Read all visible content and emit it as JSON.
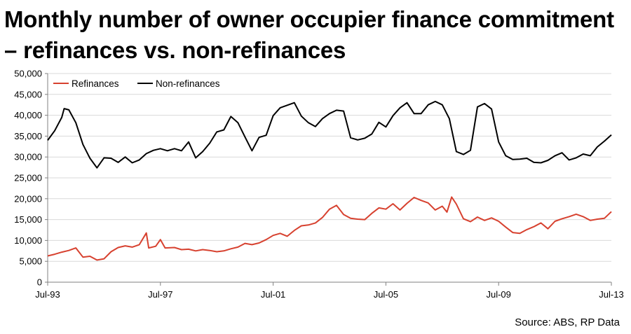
{
  "title": "Monthly number of owner occupier finance commitment – refinances vs. non-refinances",
  "source": "Source: ABS, RP Data",
  "chart_data": {
    "type": "line",
    "title": "Monthly number of owner occupier finance commitment – refinances vs. non-refinances",
    "xlabel": "",
    "ylabel": "",
    "ylim": [
      0,
      50000
    ],
    "yticks": [
      "0",
      "5,000",
      "10,000",
      "15,000",
      "20,000",
      "25,000",
      "30,000",
      "35,000",
      "40,000",
      "45,000",
      "50,000"
    ],
    "xtick_labels": [
      "Jul-93",
      "Jul-97",
      "Jul-01",
      "Jul-05",
      "Jul-09",
      "Jul-13"
    ],
    "xlim": [
      "1993-07",
      "2013-07"
    ],
    "grid": "horizontal",
    "legend": "top-left",
    "colors": {
      "Refinances": "#d7412f",
      "Non-refinances": "#000000"
    },
    "series": [
      {
        "name": "Refinances",
        "points": [
          [
            "1993-07",
            6300
          ],
          [
            "1993-10",
            6700
          ],
          [
            "1994-01",
            7200
          ],
          [
            "1994-04",
            7600
          ],
          [
            "1994-07",
            8200
          ],
          [
            "1994-10",
            6000
          ],
          [
            "1995-01",
            6200
          ],
          [
            "1995-04",
            5300
          ],
          [
            "1995-07",
            5600
          ],
          [
            "1995-10",
            7300
          ],
          [
            "1996-01",
            8300
          ],
          [
            "1996-04",
            8700
          ],
          [
            "1996-07",
            8400
          ],
          [
            "1996-10",
            9000
          ],
          [
            "1997-01",
            11800
          ],
          [
            "1997-02",
            8200
          ],
          [
            "1997-05",
            8600
          ],
          [
            "1997-07",
            10200
          ],
          [
            "1997-09",
            8200
          ],
          [
            "1998-01",
            8300
          ],
          [
            "1998-04",
            7800
          ],
          [
            "1998-07",
            7900
          ],
          [
            "1998-10",
            7500
          ],
          [
            "1999-01",
            7800
          ],
          [
            "1999-04",
            7600
          ],
          [
            "1999-07",
            7300
          ],
          [
            "1999-10",
            7500
          ],
          [
            "2000-01",
            8000
          ],
          [
            "2000-04",
            8400
          ],
          [
            "2000-07",
            9300
          ],
          [
            "2000-10",
            9000
          ],
          [
            "2001-01",
            9400
          ],
          [
            "2001-04",
            10200
          ],
          [
            "2001-07",
            11200
          ],
          [
            "2001-10",
            11700
          ],
          [
            "2002-01",
            11000
          ],
          [
            "2002-04",
            12400
          ],
          [
            "2002-07",
            13500
          ],
          [
            "2002-10",
            13700
          ],
          [
            "2003-01",
            14200
          ],
          [
            "2003-04",
            15500
          ],
          [
            "2003-07",
            17500
          ],
          [
            "2003-10",
            18400
          ],
          [
            "2004-01",
            16200
          ],
          [
            "2004-04",
            15300
          ],
          [
            "2004-07",
            15100
          ],
          [
            "2004-10",
            15000
          ],
          [
            "2005-01",
            16500
          ],
          [
            "2005-04",
            17800
          ],
          [
            "2005-07",
            17500
          ],
          [
            "2005-10",
            18800
          ],
          [
            "2006-01",
            17300
          ],
          [
            "2006-04",
            18900
          ],
          [
            "2006-07",
            20300
          ],
          [
            "2006-10",
            19600
          ],
          [
            "2007-01",
            19000
          ],
          [
            "2007-04",
            17300
          ],
          [
            "2007-07",
            18200
          ],
          [
            "2007-09",
            16800
          ],
          [
            "2007-11",
            20400
          ],
          [
            "2008-01",
            18700
          ],
          [
            "2008-04",
            15200
          ],
          [
            "2008-07",
            14500
          ],
          [
            "2008-10",
            15600
          ],
          [
            "2009-01",
            14800
          ],
          [
            "2009-04",
            15400
          ],
          [
            "2009-07",
            14600
          ],
          [
            "2009-10",
            13200
          ],
          [
            "2010-01",
            11900
          ],
          [
            "2010-04",
            11700
          ],
          [
            "2010-07",
            12600
          ],
          [
            "2010-10",
            13300
          ],
          [
            "2011-01",
            14200
          ],
          [
            "2011-04",
            12800
          ],
          [
            "2011-07",
            14600
          ],
          [
            "2011-10",
            15200
          ],
          [
            "2012-01",
            15700
          ],
          [
            "2012-04",
            16300
          ],
          [
            "2012-07",
            15700
          ],
          [
            "2012-10",
            14800
          ],
          [
            "2013-01",
            15100
          ],
          [
            "2013-04",
            15300
          ],
          [
            "2013-07",
            16900
          ]
        ]
      },
      {
        "name": "Non-refinances",
        "points": [
          [
            "1993-07",
            34000
          ],
          [
            "1993-10",
            36300
          ],
          [
            "1994-01",
            39500
          ],
          [
            "1994-02",
            41600
          ],
          [
            "1994-04",
            41300
          ],
          [
            "1994-07",
            38200
          ],
          [
            "1994-10",
            33000
          ],
          [
            "1995-01",
            29700
          ],
          [
            "1995-04",
            27400
          ],
          [
            "1995-07",
            29800
          ],
          [
            "1995-10",
            29700
          ],
          [
            "1996-01",
            28700
          ],
          [
            "1996-04",
            30000
          ],
          [
            "1996-07",
            28600
          ],
          [
            "1996-10",
            29300
          ],
          [
            "1997-01",
            30800
          ],
          [
            "1997-04",
            31600
          ],
          [
            "1997-07",
            32000
          ],
          [
            "1997-10",
            31500
          ],
          [
            "1998-01",
            32000
          ],
          [
            "1998-04",
            31500
          ],
          [
            "1998-07",
            33600
          ],
          [
            "1998-10",
            29800
          ],
          [
            "1999-01",
            31300
          ],
          [
            "1999-04",
            33300
          ],
          [
            "1999-07",
            36000
          ],
          [
            "1999-10",
            36500
          ],
          [
            "2000-01",
            39700
          ],
          [
            "2000-04",
            38200
          ],
          [
            "2000-07",
            34800
          ],
          [
            "2000-10",
            31500
          ],
          [
            "2001-01",
            34700
          ],
          [
            "2001-04",
            35200
          ],
          [
            "2001-07",
            39900
          ],
          [
            "2001-10",
            41800
          ],
          [
            "2002-01",
            42400
          ],
          [
            "2002-04",
            43000
          ],
          [
            "2002-07",
            39800
          ],
          [
            "2002-10",
            38200
          ],
          [
            "2003-01",
            37300
          ],
          [
            "2003-04",
            39200
          ],
          [
            "2003-07",
            40400
          ],
          [
            "2003-10",
            41200
          ],
          [
            "2004-01",
            41000
          ],
          [
            "2004-04",
            34600
          ],
          [
            "2004-07",
            34100
          ],
          [
            "2004-10",
            34500
          ],
          [
            "2005-01",
            35500
          ],
          [
            "2005-04",
            38300
          ],
          [
            "2005-07",
            37200
          ],
          [
            "2005-10",
            39900
          ],
          [
            "2006-01",
            41800
          ],
          [
            "2006-04",
            43000
          ],
          [
            "2006-07",
            40400
          ],
          [
            "2006-10",
            40400
          ],
          [
            "2007-01",
            42500
          ],
          [
            "2007-04",
            43300
          ],
          [
            "2007-07",
            42500
          ],
          [
            "2007-10",
            39200
          ],
          [
            "2008-01",
            31300
          ],
          [
            "2008-04",
            30600
          ],
          [
            "2008-07",
            31600
          ],
          [
            "2008-10",
            42000
          ],
          [
            "2009-01",
            42800
          ],
          [
            "2009-04",
            41500
          ],
          [
            "2009-07",
            33600
          ],
          [
            "2009-10",
            30300
          ],
          [
            "2010-01",
            29400
          ],
          [
            "2010-04",
            29500
          ],
          [
            "2010-07",
            29700
          ],
          [
            "2010-10",
            28700
          ],
          [
            "2011-01",
            28600
          ],
          [
            "2011-04",
            29200
          ],
          [
            "2011-07",
            30300
          ],
          [
            "2011-10",
            31000
          ],
          [
            "2012-01",
            29300
          ],
          [
            "2012-04",
            29800
          ],
          [
            "2012-07",
            30700
          ],
          [
            "2012-10",
            30300
          ],
          [
            "2013-01",
            32400
          ],
          [
            "2013-04",
            33800
          ],
          [
            "2013-07",
            35300
          ]
        ]
      }
    ]
  }
}
